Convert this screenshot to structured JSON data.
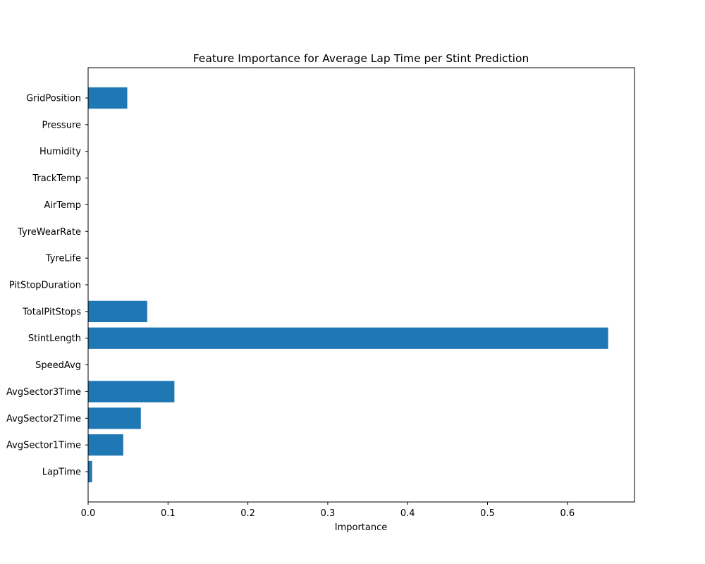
{
  "chart_data": {
    "type": "bar",
    "orientation": "horizontal",
    "title": "Feature Importance for Average Lap Time per Stint Prediction",
    "xlabel": "Importance",
    "ylabel": "",
    "categories": [
      "LapTime",
      "AvgSector1Time",
      "AvgSector2Time",
      "AvgSector3Time",
      "SpeedAvg",
      "StintLength",
      "TotalPitStops",
      "PitStopDuration",
      "TyreLife",
      "TyreWearRate",
      "AirTemp",
      "TrackTemp",
      "Humidity",
      "Pressure",
      "GridPosition"
    ],
    "values": [
      0.005,
      0.044,
      0.066,
      0.108,
      0.0,
      0.651,
      0.074,
      0.0,
      0.0,
      0.0,
      0.0,
      0.0,
      0.0,
      0.0,
      0.049
    ],
    "xlim": [
      0,
      0.684
    ],
    "xticks": [
      "0.0",
      "0.1",
      "0.2",
      "0.3",
      "0.4",
      "0.5",
      "0.6"
    ],
    "bar_color": "#1f77b4",
    "grid": false,
    "legend": "none"
  }
}
